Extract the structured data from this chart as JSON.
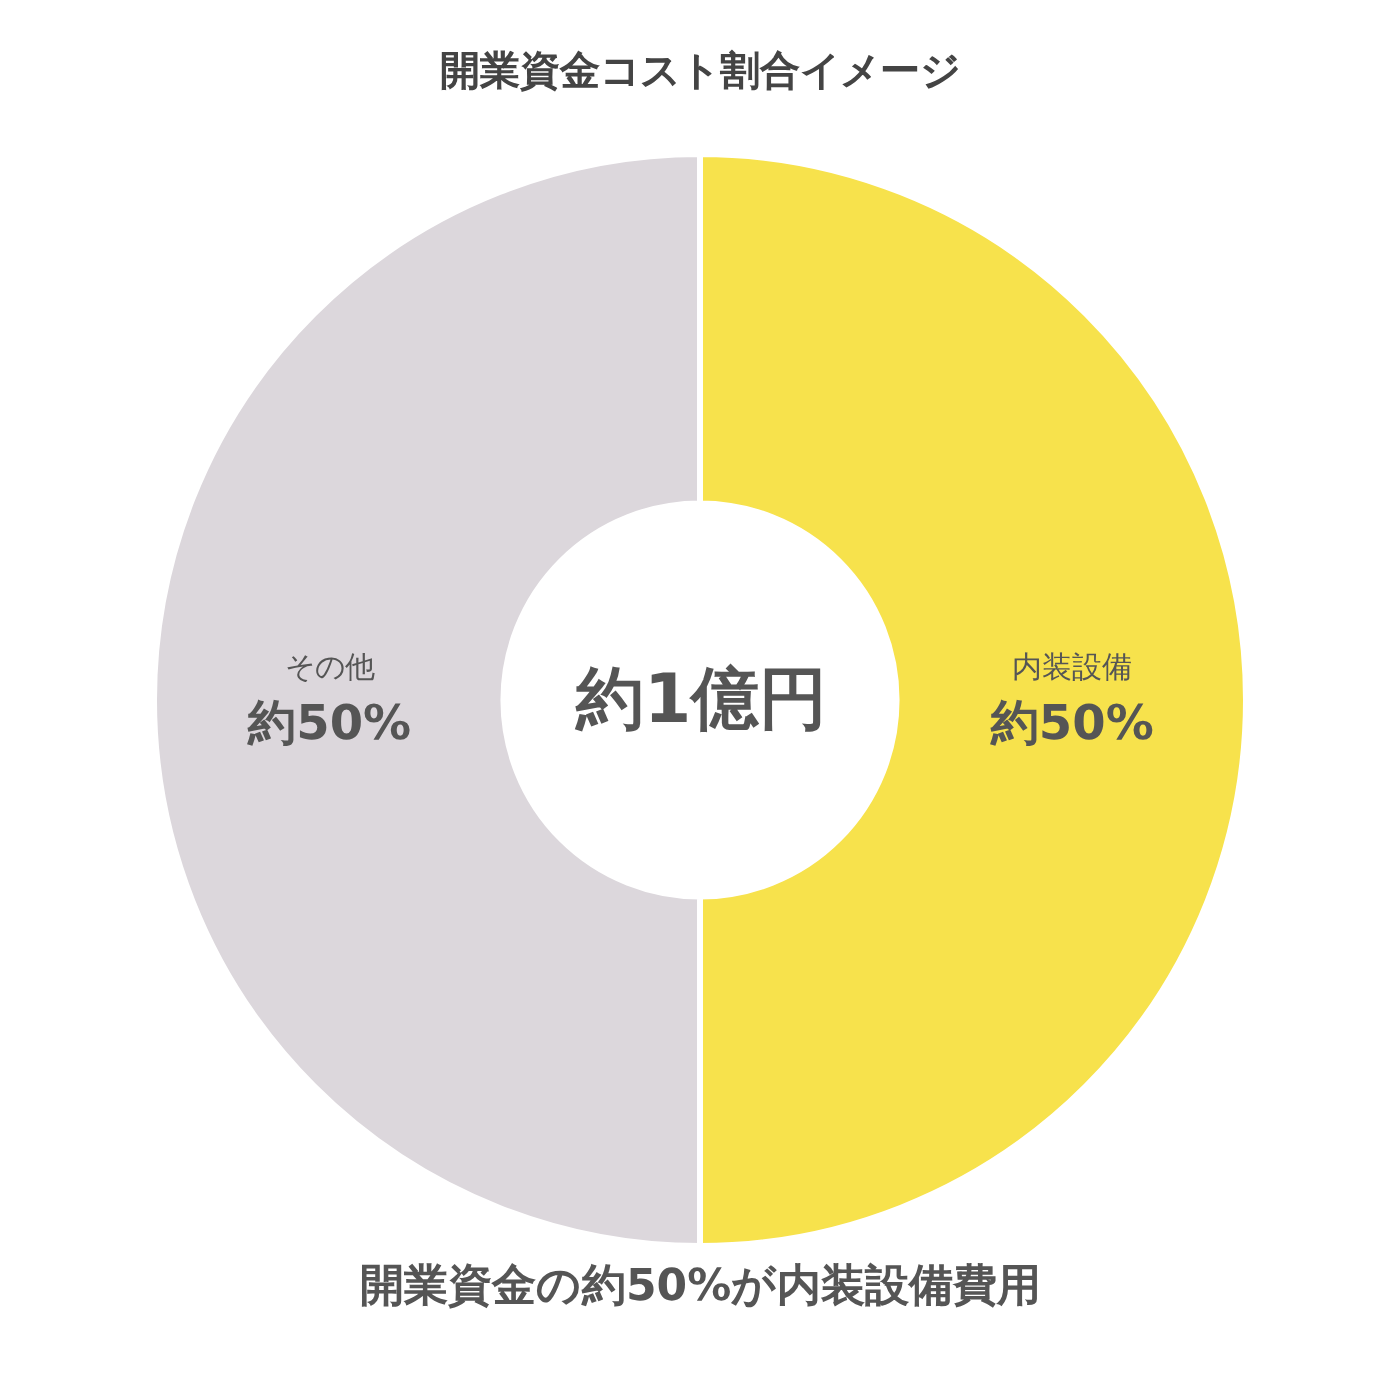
{
  "chart_data": {
    "type": "donut",
    "title": "開業資金コスト割合イメージ",
    "categories": [
      "内装設備",
      "その他"
    ],
    "values": [
      50,
      50
    ],
    "colors": [
      "#f7e24c",
      "#dcd7dc"
    ],
    "value_labels": [
      "約50%",
      "約50%"
    ],
    "annotations": [
      "約1億円",
      "開業資金の約50%が内装設備費用"
    ],
    "legend": false
  }
}
